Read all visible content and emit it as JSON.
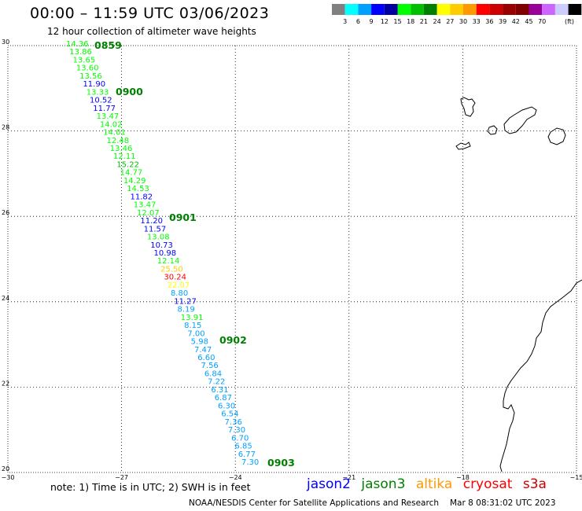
{
  "title": "00:00 – 11:59 UTC 03/06/2023",
  "subtitle": "12 hour collection of altimeter wave heights",
  "scale": {
    "colors": [
      "#808080",
      "#00ffff",
      "#00a0ff",
      "#0000ff",
      "#0000a0",
      "#00ff00",
      "#00c000",
      "#008000",
      "#ffff00",
      "#ffcc00",
      "#ff9900",
      "#ff0000",
      "#cc0000",
      "#990000",
      "#800000",
      "#990099",
      "#cc66ff",
      "#ccccff",
      "#000000"
    ],
    "labels": [
      "3",
      "6",
      "9",
      "12",
      "15",
      "18",
      "21",
      "24",
      "27",
      "30",
      "33",
      "36",
      "39",
      "42",
      "45",
      "70"
    ],
    "unit": "(ft)"
  },
  "axes": {
    "lat_labels": [
      "30",
      "28",
      "26",
      "24",
      "22",
      "20"
    ],
    "lon_labels": [
      "−30",
      "−27",
      "−24",
      "−21",
      "−18",
      "−15"
    ]
  },
  "time_labels": [
    "0859",
    "0900",
    "0901",
    "0902",
    "0903"
  ],
  "wave_heights": [
    {
      "v": "14.36",
      "c": "#00ff00"
    },
    {
      "v": "13.86",
      "c": "#00ff00"
    },
    {
      "v": "13.65",
      "c": "#00ff00"
    },
    {
      "v": "13.60",
      "c": "#00ff00"
    },
    {
      "v": "13.56",
      "c": "#00ff00"
    },
    {
      "v": "11.90",
      "c": "#0000ff"
    },
    {
      "v": "13.33",
      "c": "#00ff00"
    },
    {
      "v": "10.52",
      "c": "#0000ff"
    },
    {
      "v": "11.77",
      "c": "#0000ff"
    },
    {
      "v": "13.47",
      "c": "#00ff00"
    },
    {
      "v": "14.02",
      "c": "#00ff00"
    },
    {
      "v": "14.01",
      "c": "#00ff00"
    },
    {
      "v": "12.48",
      "c": "#00ff00"
    },
    {
      "v": "13.46",
      "c": "#00ff00"
    },
    {
      "v": "12.11",
      "c": "#00ff00"
    },
    {
      "v": "15.22",
      "c": "#00c000"
    },
    {
      "v": "14.77",
      "c": "#00ff00"
    },
    {
      "v": "14.29",
      "c": "#00ff00"
    },
    {
      "v": "14.53",
      "c": "#00ff00"
    },
    {
      "v": "11.82",
      "c": "#0000ff"
    },
    {
      "v": "13.47",
      "c": "#00ff00"
    },
    {
      "v": "12.07",
      "c": "#00ff00"
    },
    {
      "v": "11.20",
      "c": "#0000ff"
    },
    {
      "v": "11.57",
      "c": "#0000ff"
    },
    {
      "v": "13.08",
      "c": "#00ff00"
    },
    {
      "v": "10.73",
      "c": "#0000ff"
    },
    {
      "v": "10.98",
      "c": "#0000ff"
    },
    {
      "v": "12.14",
      "c": "#00ff00"
    },
    {
      "v": "25.50",
      "c": "#ffcc00"
    },
    {
      "v": "30.24",
      "c": "#ff0000"
    },
    {
      "v": "22.07",
      "c": "#ffff00"
    },
    {
      "v": "8.80",
      "c": "#00a0ff"
    },
    {
      "v": "11.27",
      "c": "#0000ff"
    },
    {
      "v": "8.19",
      "c": "#00a0ff"
    },
    {
      "v": "13.91",
      "c": "#00ff00"
    },
    {
      "v": "8.15",
      "c": "#00a0ff"
    },
    {
      "v": "7.00",
      "c": "#00a0ff"
    },
    {
      "v": "5.98",
      "c": "#00a0ff"
    },
    {
      "v": "7.47",
      "c": "#00a0ff"
    },
    {
      "v": "6.60",
      "c": "#00a0ff"
    },
    {
      "v": "7.56",
      "c": "#00a0ff"
    },
    {
      "v": "6.84",
      "c": "#00a0ff"
    },
    {
      "v": "7.22",
      "c": "#00a0ff"
    },
    {
      "v": "6.31",
      "c": "#00a0ff"
    },
    {
      "v": "6.87",
      "c": "#00a0ff"
    },
    {
      "v": "6.30",
      "c": "#00a0ff"
    },
    {
      "v": "6.54",
      "c": "#00a0ff"
    },
    {
      "v": "7.36",
      "c": "#00a0ff"
    },
    {
      "v": "7.30",
      "c": "#00a0ff"
    },
    {
      "v": "6.70",
      "c": "#00a0ff"
    },
    {
      "v": "6.85",
      "c": "#00a0ff"
    },
    {
      "v": "6.77",
      "c": "#00a0ff"
    },
    {
      "v": "7.30",
      "c": "#00a0ff"
    }
  ],
  "note": "note: 1) Time is in UTC; 2) SWH is in feet",
  "satellites": [
    {
      "name": "jason2",
      "color": "#0000ff"
    },
    {
      "name": "jason3",
      "color": "#008000"
    },
    {
      "name": "altika",
      "color": "#ff9900"
    },
    {
      "name": "cryosat",
      "color": "#ff0000"
    },
    {
      "name": "s3a",
      "color": "#cc0000"
    }
  ],
  "credit": "NOAA/NESDIS Center for Satellite Applications and Research",
  "timestamp": "Mar  8 08:31:02 UTC 2023"
}
